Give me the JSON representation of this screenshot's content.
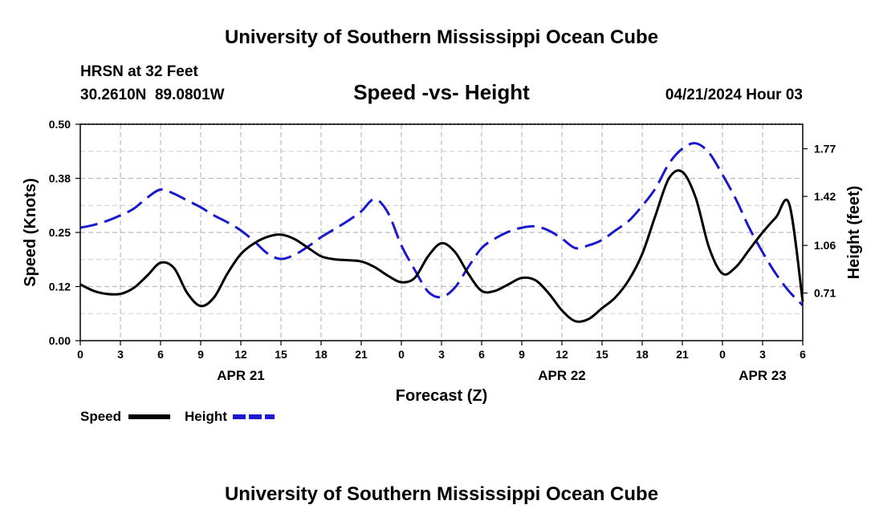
{
  "chart_data": {
    "type": "line",
    "title": "University of Southern Mississippi Ocean Cube",
    "footer_title": "University of Southern Mississippi Ocean Cube",
    "subtitle": "Speed -vs- Height",
    "station": "HRSN at 32 Feet",
    "coords": "30.2610N  89.0801W",
    "date": "04/21/2024 Hour 03",
    "xlabel": "Forecast (Z)",
    "ylabel_left": "Speed (Knots)",
    "ylabel_right": "Height (feet)",
    "xlim": [
      0,
      54
    ],
    "ylim_left": [
      0,
      0.5
    ],
    "ylim_right": [
      0.36,
      1.95
    ],
    "x_ticks": [
      0,
      3,
      6,
      9,
      12,
      15,
      18,
      21,
      24,
      27,
      30,
      33,
      36,
      39,
      42,
      45,
      48,
      51,
      54
    ],
    "x_tick_labels": [
      "0",
      "3",
      "6",
      "9",
      "12",
      "15",
      "18",
      "21",
      "0",
      "3",
      "6",
      "9",
      "12",
      "15",
      "18",
      "21",
      "0",
      "3",
      "6"
    ],
    "date_labels": [
      {
        "x": 12,
        "label": "APR 21"
      },
      {
        "x": 36,
        "label": "APR 22"
      },
      {
        "x": 51,
        "label": "APR 23"
      }
    ],
    "y_left_ticks": [
      0,
      0.125,
      0.25,
      0.375,
      0.5
    ],
    "y_left_tick_labels": [
      "0.00",
      "0.12",
      "0.25",
      "0.38",
      "0.50"
    ],
    "y_right_ticks": [
      0.71,
      1.06,
      1.42,
      1.77
    ],
    "y_right_tick_labels": [
      "0.71",
      "1.06",
      "1.42",
      "1.77"
    ],
    "series": [
      {
        "name": "Speed",
        "axis": "left",
        "color": "#000000",
        "dash": "solid",
        "x": [
          0,
          1,
          2,
          3,
          4,
          5,
          6,
          7,
          8,
          9,
          10,
          11,
          12,
          13,
          14,
          15,
          16,
          17,
          18,
          19,
          20,
          21,
          22,
          23,
          24,
          25,
          26,
          27,
          28,
          29,
          30,
          31,
          32,
          33,
          34,
          35,
          36,
          37,
          38,
          39,
          40,
          41,
          42,
          43,
          44,
          45,
          46,
          47,
          48,
          49,
          50,
          51,
          52,
          53,
          54
        ],
        "values": [
          0.13,
          0.115,
          0.108,
          0.108,
          0.122,
          0.15,
          0.18,
          0.168,
          0.11,
          0.08,
          0.1,
          0.155,
          0.2,
          0.225,
          0.24,
          0.245,
          0.235,
          0.215,
          0.195,
          0.188,
          0.186,
          0.183,
          0.17,
          0.15,
          0.135,
          0.145,
          0.195,
          0.225,
          0.205,
          0.155,
          0.115,
          0.115,
          0.13,
          0.145,
          0.14,
          0.11,
          0.07,
          0.045,
          0.05,
          0.075,
          0.1,
          0.14,
          0.2,
          0.29,
          0.375,
          0.39,
          0.33,
          0.215,
          0.155,
          0.17,
          0.21,
          0.25,
          0.285,
          0.315,
          0.09
        ]
      },
      {
        "name": "Height",
        "axis": "right",
        "color": "#1a1acc",
        "dash": "dashed",
        "x": [
          0,
          1,
          2,
          3,
          4,
          5,
          6,
          7,
          8,
          9,
          10,
          11,
          12,
          13,
          14,
          15,
          16,
          17,
          18,
          19,
          20,
          21,
          22,
          23,
          24,
          25,
          26,
          27,
          28,
          29,
          30,
          31,
          32,
          33,
          34,
          35,
          36,
          37,
          38,
          39,
          40,
          41,
          42,
          43,
          44,
          45,
          46,
          47,
          48,
          49,
          50,
          51,
          52,
          53,
          54
        ],
        "values": [
          1.19,
          1.21,
          1.24,
          1.28,
          1.33,
          1.41,
          1.47,
          1.44,
          1.39,
          1.34,
          1.28,
          1.23,
          1.17,
          1.09,
          1.0,
          0.96,
          0.99,
          1.05,
          1.12,
          1.18,
          1.24,
          1.31,
          1.4,
          1.3,
          1.06,
          0.88,
          0.72,
          0.68,
          0.75,
          0.9,
          1.04,
          1.11,
          1.16,
          1.19,
          1.2,
          1.17,
          1.11,
          1.04,
          1.06,
          1.1,
          1.17,
          1.24,
          1.35,
          1.48,
          1.66,
          1.77,
          1.81,
          1.74,
          1.58,
          1.4,
          1.19,
          1.01,
          0.85,
          0.72,
          0.62
        ]
      }
    ],
    "legend": [
      {
        "label": "Speed",
        "color": "#000000",
        "dash": "solid"
      },
      {
        "label": "Height",
        "color": "#1a1acc",
        "dash": "dashed"
      }
    ],
    "grid": true
  }
}
